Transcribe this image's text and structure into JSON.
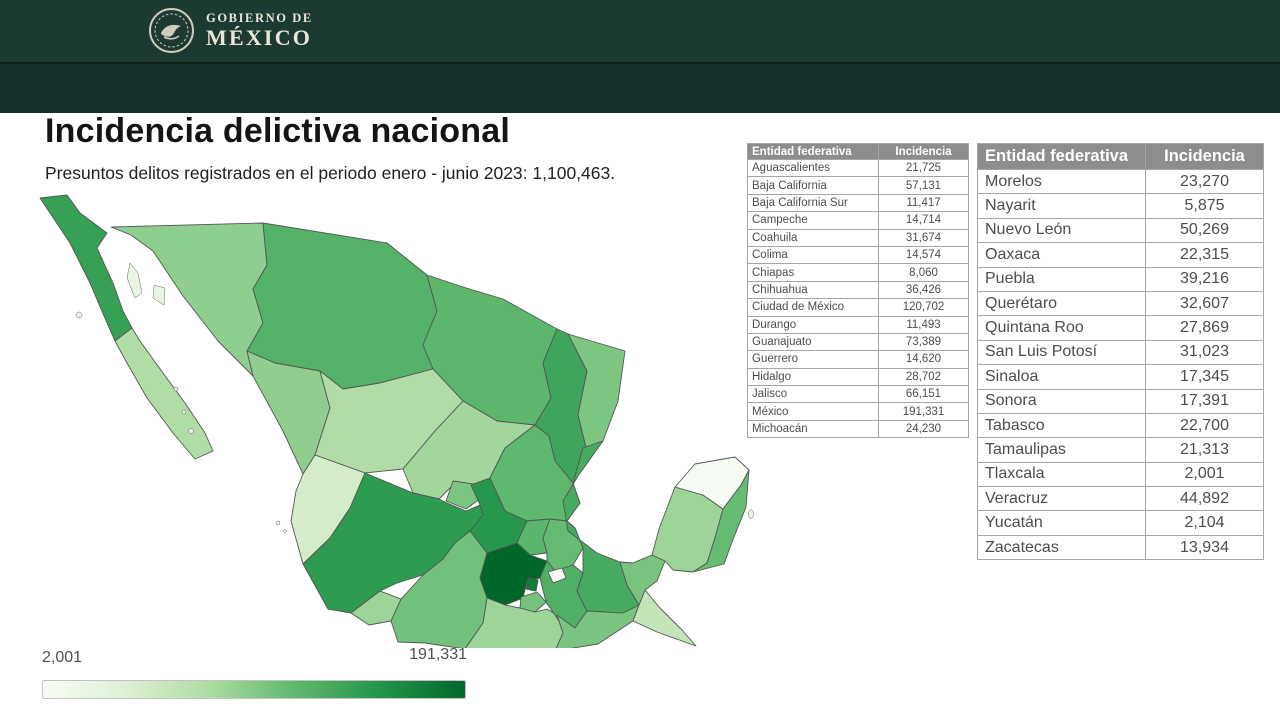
{
  "header": {
    "logo_line1": "GOBIERNO DE",
    "logo_line2": "MÉXICO"
  },
  "page": {
    "title": "Incidencia delictiva nacional",
    "subtitle": "Presuntos delitos registrados en el periodo enero - junio 2023: 1,100,463."
  },
  "legend": {
    "min_label": "2,001",
    "max_label": "191,331"
  },
  "tables": {
    "col_entity": "Entidad federativa",
    "col_incidence": "Incidencia",
    "left_rows": [
      {
        "name": "Aguascalientes",
        "value": "21,725"
      },
      {
        "name": "Baja California",
        "value": "57,131"
      },
      {
        "name": "Baja California Sur",
        "value": "11,417"
      },
      {
        "name": "Campeche",
        "value": "14,714"
      },
      {
        "name": "Coahuila",
        "value": "31,674"
      },
      {
        "name": "Colima",
        "value": "14,574"
      },
      {
        "name": "Chiapas",
        "value": "8,060"
      },
      {
        "name": "Chihuahua",
        "value": "36,426"
      },
      {
        "name": "Ciudad de México",
        "value": "120,702"
      },
      {
        "name": "Durango",
        "value": "11,493"
      },
      {
        "name": "Guanajuato",
        "value": "73,389"
      },
      {
        "name": "Guerrero",
        "value": "14,620"
      },
      {
        "name": "Hidalgo",
        "value": "28,702"
      },
      {
        "name": "Jalisco",
        "value": "66,151"
      },
      {
        "name": "México",
        "value": "191,331"
      },
      {
        "name": "Michoacán",
        "value": "24,230"
      }
    ],
    "right_rows": [
      {
        "name": "Morelos",
        "value": "23,270"
      },
      {
        "name": "Nayarit",
        "value": "5,875"
      },
      {
        "name": "Nuevo León",
        "value": "50,269"
      },
      {
        "name": "Oaxaca",
        "value": "22,315"
      },
      {
        "name": "Puebla",
        "value": "39,216"
      },
      {
        "name": "Querétaro",
        "value": "32,607"
      },
      {
        "name": "Quintana Roo",
        "value": "27,869"
      },
      {
        "name": "San Luis Potosí",
        "value": "31,023"
      },
      {
        "name": "Sinaloa",
        "value": "17,345"
      },
      {
        "name": "Sonora",
        "value": "17,391"
      },
      {
        "name": "Tabasco",
        "value": "22,700"
      },
      {
        "name": "Tamaulipas",
        "value": "21,313"
      },
      {
        "name": "Tlaxcala",
        "value": "2,001"
      },
      {
        "name": "Veracruz",
        "value": "44,892"
      },
      {
        "name": "Yucatán",
        "value": "2,104"
      },
      {
        "name": "Zacatecas",
        "value": "13,934"
      }
    ]
  },
  "chart_data": {
    "type": "choropleth",
    "title": "Incidencia delictiva nacional",
    "subtitle": "Presuntos delitos registrados en el periodo enero - junio 2023: 1,100,463.",
    "region": "Mexico (estados)",
    "period": "enero - junio 2023",
    "total": 1100463,
    "color_scale": {
      "scale": "log",
      "min": 2001,
      "max": 191331,
      "min_color": "#f7fcf5",
      "max_color": "#00672b"
    },
    "legend": {
      "min_label": "2,001",
      "max_label": "191,331"
    },
    "values": {
      "Aguascalientes": 21725,
      "Baja California": 57131,
      "Baja California Sur": 11417,
      "Campeche": 14714,
      "Coahuila": 31674,
      "Colima": 14574,
      "Chiapas": 8060,
      "Chihuahua": 36426,
      "Ciudad de México": 120702,
      "Durango": 11493,
      "Guanajuato": 73389,
      "Guerrero": 14620,
      "Hidalgo": 28702,
      "Jalisco": 66151,
      "México": 191331,
      "Michoacán": 24230,
      "Morelos": 23270,
      "Nayarit": 5875,
      "Nuevo León": 50269,
      "Oaxaca": 22315,
      "Puebla": 39216,
      "Querétaro": 32607,
      "Quintana Roo": 27869,
      "San Luis Potosí": 31023,
      "Sinaloa": 17345,
      "Sonora": 17391,
      "Tabasco": 22700,
      "Tamaulipas": 21313,
      "Tlaxcala": 2001,
      "Veracruz": 44892,
      "Yucatán": 2104,
      "Zacatecas": 13934
    }
  }
}
